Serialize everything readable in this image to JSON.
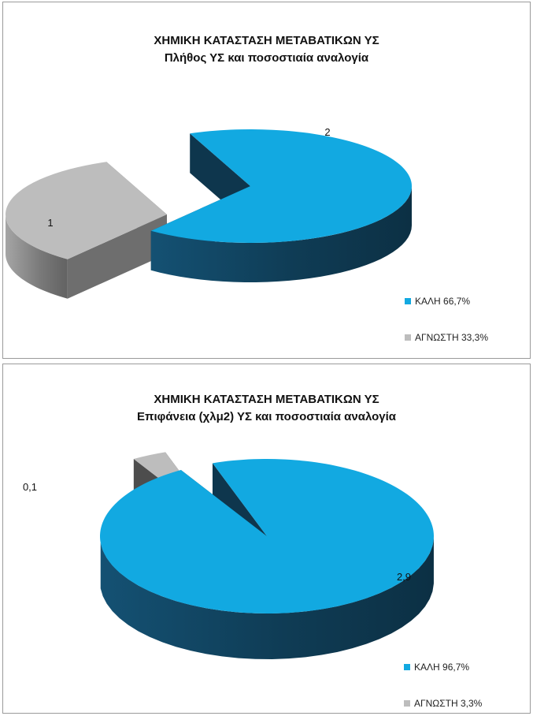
{
  "chart_data": [
    {
      "type": "pie",
      "title_lines": [
        "ΧΗΜΙΚΗ ΚΑΤΑΣΤΑΣΗ ΜΕΤΑΒΑΤΙΚΩΝ ΥΣ",
        "Πλήθος ΥΣ και  ποσοστιαία αναλογία"
      ],
      "values": [
        2,
        1
      ],
      "data_labels": [
        "2",
        "1"
      ],
      "legend": [
        "ΚΑΛΗ 66,7%",
        "ΑΓΝΩΣΤΗ 33,3%"
      ],
      "colors": [
        "#12a9e1",
        "#bdbdbd"
      ],
      "side_colors": [
        "#0f3c55",
        "#7a7a7a"
      ],
      "legend_placement": "bottom-right",
      "exploded": true,
      "three_d": true
    },
    {
      "type": "pie",
      "title_lines": [
        "ΧΗΜΙΚΗ ΚΑΤΑΣΤΑΣΗ ΜΕΤΑΒΑΤΙΚΩΝ ΥΣ",
        "Επιφάνεια (χλμ2) ΥΣ και  ποσοστιαία αναλογία"
      ],
      "values": [
        2.9,
        0.1
      ],
      "data_labels": [
        "2,9",
        "0,1"
      ],
      "legend": [
        "ΚΑΛΗ 96,7%",
        "ΑΓΝΩΣΤΗ 3,3%"
      ],
      "colors": [
        "#12a9e1",
        "#bdbdbd"
      ],
      "side_colors": [
        "#0f3c55",
        "#555555"
      ],
      "legend_placement": "bottom-right",
      "exploded": true,
      "three_d": true
    }
  ]
}
